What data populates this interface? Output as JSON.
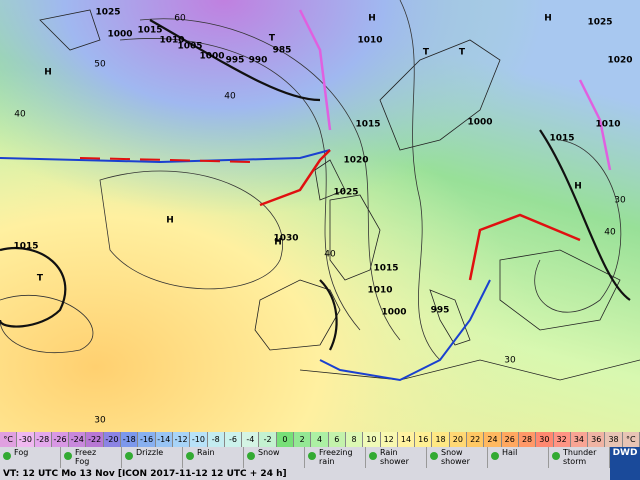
{
  "map": {
    "centers": [
      "H",
      "H",
      "H",
      "H",
      "H",
      "T",
      "T",
      "T",
      "T",
      "H"
    ],
    "isobar_labels": [
      "1025",
      "1015",
      "1010",
      "1005",
      "1000",
      "995",
      "990",
      "985",
      "1010",
      "1015",
      "1020",
      "1025",
      "1030",
      "1015",
      "1010",
      "1000",
      "995",
      "1000",
      "1015",
      "1010",
      "1025",
      "1020",
      "1015",
      "1000"
    ],
    "grid_labels": [
      "60",
      "50",
      "40",
      "30",
      "40",
      "30",
      "40",
      "30",
      "40"
    ]
  },
  "legend": {
    "unit": "°C",
    "scale": [
      -30,
      -28,
      -26,
      -24,
      -22,
      -20,
      -18,
      -16,
      -14,
      -12,
      -10,
      -8,
      -6,
      -4,
      -2,
      0,
      2,
      4,
      6,
      8,
      10,
      12,
      14,
      16,
      18,
      20,
      22,
      24,
      26,
      28,
      30,
      32,
      34,
      36,
      38
    ],
    "colors": [
      "#f0b8f0",
      "#e4a8ec",
      "#d898e4",
      "#c888dc",
      "#b878d4",
      "#8c84e4",
      "#7c98ec",
      "#88b0f0",
      "#98c4f4",
      "#a8d4f8",
      "#b8e2f8",
      "#c4ecf0",
      "#ccf2ec",
      "#d4f4e4",
      "#c4f2d0",
      "#78e078",
      "#94e894",
      "#acf0a4",
      "#c4f2ac",
      "#dcf8b4",
      "#f0fab8",
      "#f8f8b0",
      "#fff2a0",
      "#fff094",
      "#ffe884",
      "#ffd874",
      "#ffc864",
      "#ffb860",
      "#ffa860",
      "#ff9868",
      "#ff8870",
      "#ff9484",
      "#f8a494",
      "#f0b4a4",
      "#e8c4b4"
    ],
    "items": [
      "Fog",
      "Freez\nFog",
      "Drizzle",
      "Rain",
      "Snow",
      "Freezing\nrain",
      "Rain\nshower",
      "Snow\nshower",
      "Hail",
      "Thunder\nstorm"
    ],
    "logo": "DWD"
  },
  "footer": "VT: 12 UTC Mo  13 Nov [ICON 2017-11-12  12 UTC + 24 h]"
}
